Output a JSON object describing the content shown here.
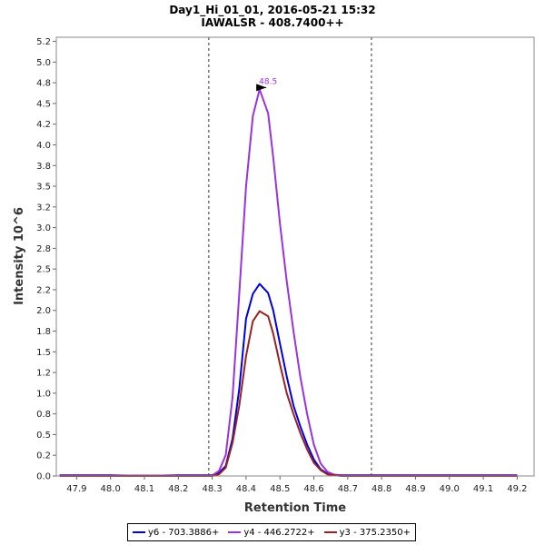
{
  "chart_data": {
    "type": "line",
    "title": "Day1_Hi_01_01, 2016-05-21 15:32",
    "subtitle": "IAWALSR - 408.7400++",
    "xlabel": "Retention Time",
    "ylabel": "Intensity 10^6",
    "xlim": [
      47.84,
      49.25
    ],
    "ylim": [
      0,
      5.3
    ],
    "xticks": [
      "47.9",
      "48.0",
      "48.1",
      "48.2",
      "48.3",
      "48.4",
      "48.5",
      "48.6",
      "48.7",
      "48.8",
      "48.9",
      "49.0",
      "49.1",
      "49.2"
    ],
    "yticks": [
      "0.0",
      "0.2",
      "0.5",
      "0.8",
      "1.0",
      "1.2",
      "1.5",
      "1.8",
      "2.0",
      "2.2",
      "2.5",
      "2.8",
      "3.0",
      "3.2",
      "3.5",
      "3.8",
      "4.0",
      "4.2",
      "4.5",
      "4.8",
      "5.0",
      "5.2"
    ],
    "integration_bounds": [
      48.29,
      48.77
    ],
    "peak_annotation": {
      "label": "48.5",
      "x": 48.465,
      "y": 4.67
    },
    "legend_position": "bottom",
    "x": [
      47.85,
      47.9,
      47.95,
      48.0,
      48.05,
      48.1,
      48.15,
      48.2,
      48.25,
      48.3,
      48.32,
      48.34,
      48.36,
      48.38,
      48.4,
      48.42,
      48.44,
      48.465,
      48.48,
      48.5,
      48.52,
      48.54,
      48.56,
      48.58,
      48.6,
      48.62,
      48.64,
      48.66,
      48.68,
      48.7,
      48.72,
      48.74,
      48.77,
      48.8,
      48.9,
      49.0,
      49.1,
      49.2
    ],
    "series": [
      {
        "name": "y6 - 703.3886+",
        "color": "#0000dd",
        "values": [
          0.01,
          0.01,
          0.01,
          0.01,
          0.005,
          0.005,
          0.005,
          0.01,
          0.01,
          0.01,
          0.04,
          0.12,
          0.45,
          1.05,
          1.9,
          2.2,
          2.32,
          2.21,
          2.0,
          1.6,
          1.2,
          0.85,
          0.6,
          0.38,
          0.2,
          0.08,
          0.03,
          0.015,
          0.01,
          0.01,
          0.01,
          0.01,
          0.01,
          0.01,
          0.01,
          0.01,
          0.01,
          0.01
        ]
      },
      {
        "name": "y4 - 446.2722+",
        "color": "#9933dd",
        "values": [
          0.005,
          0.005,
          0.005,
          0.005,
          0.005,
          0.005,
          0.005,
          0.005,
          0.005,
          0.005,
          0.06,
          0.25,
          0.95,
          2.2,
          3.5,
          4.35,
          4.67,
          4.38,
          3.85,
          3.05,
          2.35,
          1.75,
          1.2,
          0.75,
          0.38,
          0.15,
          0.05,
          0.015,
          0.005,
          0.005,
          0.005,
          0.005,
          0.005,
          0.005,
          0.005,
          0.005,
          0.005,
          0.005
        ]
      },
      {
        "name": "y3 - 375.2350+",
        "color": "#992222",
        "values": [
          0.0,
          0.0,
          0.0,
          0.0,
          0.0,
          0.0,
          0.0,
          0.0,
          0.0,
          0.0,
          0.02,
          0.1,
          0.4,
          0.85,
          1.45,
          1.87,
          1.99,
          1.93,
          1.72,
          1.35,
          1.0,
          0.75,
          0.52,
          0.32,
          0.16,
          0.07,
          0.02,
          0.01,
          0.0,
          0.0,
          0.0,
          0.0,
          0.0,
          0.0,
          0.0,
          0.0,
          0.0,
          0.0
        ]
      }
    ]
  }
}
